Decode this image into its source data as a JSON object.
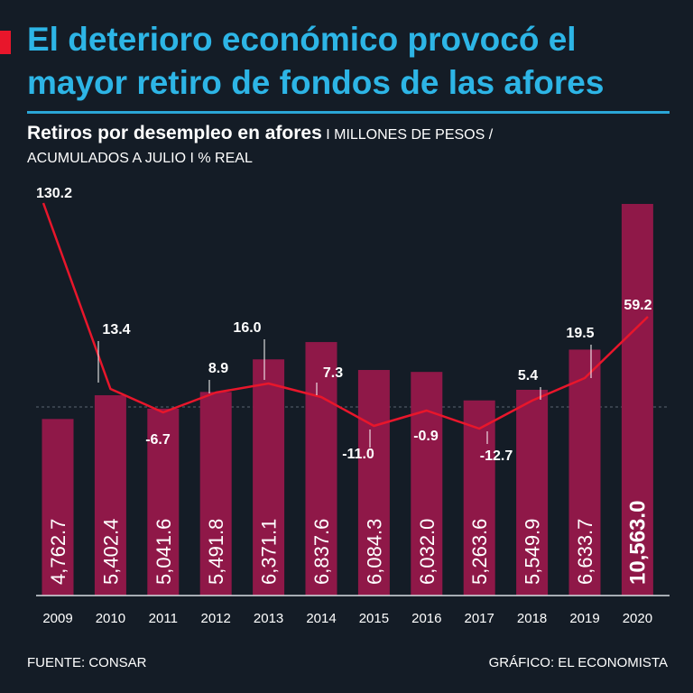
{
  "header": {
    "title": "El deterioro económico provocó el mayor retiro de fondos de las afores"
  },
  "subtitle": {
    "main": "Retiros por desempleo en afores",
    "sep1": " I ",
    "units_part1": "MILLONES DE PESOS /",
    "units_part2": "ACUMULADOS A JULIO I % REAL"
  },
  "footer": {
    "source": "FUENTE: CONSAR",
    "credit": "GRÁFICO: EL ECONOMISTA"
  },
  "colors": {
    "background": "#141c26",
    "title": "#2db5e6",
    "bars": "#8f1848",
    "line": "#e8162b",
    "accent": "#e8162b"
  },
  "chart_data": {
    "type": "bar",
    "categories": [
      "2009",
      "2010",
      "2011",
      "2012",
      "2013",
      "2014",
      "2015",
      "2016",
      "2017",
      "2018",
      "2019",
      "2020"
    ],
    "series": [
      {
        "name": "Millones de pesos",
        "type": "bar",
        "values": [
          4762.7,
          5402.4,
          5041.6,
          5491.8,
          6371.1,
          6837.6,
          6084.3,
          6032.0,
          5263.6,
          5549.9,
          6633.7,
          10563.0
        ],
        "labels": [
          "4,762.7",
          "5,402.4",
          "5,041.6",
          "5,491.8",
          "6,371.1",
          "6,837.6",
          "6,084.3",
          "6,032.0",
          "5,263.6",
          "5,549.9",
          "6,633.7",
          "10,563.0"
        ]
      },
      {
        "name": "% real",
        "type": "line",
        "values": [
          130.2,
          13.4,
          -6.7,
          8.9,
          16.0,
          7.3,
          -11.0,
          -0.9,
          -12.7,
          5.4,
          19.5,
          59.2
        ],
        "labels": [
          "130.2",
          "13.4",
          "-6.7",
          "8.9",
          "16.0",
          "7.3",
          "-11.0",
          "-0.9",
          "-12.7",
          "5.4",
          "19.5",
          "59.2"
        ]
      }
    ],
    "ylim": [
      0,
      11000
    ],
    "xlabel": "",
    "ylabel": ""
  }
}
